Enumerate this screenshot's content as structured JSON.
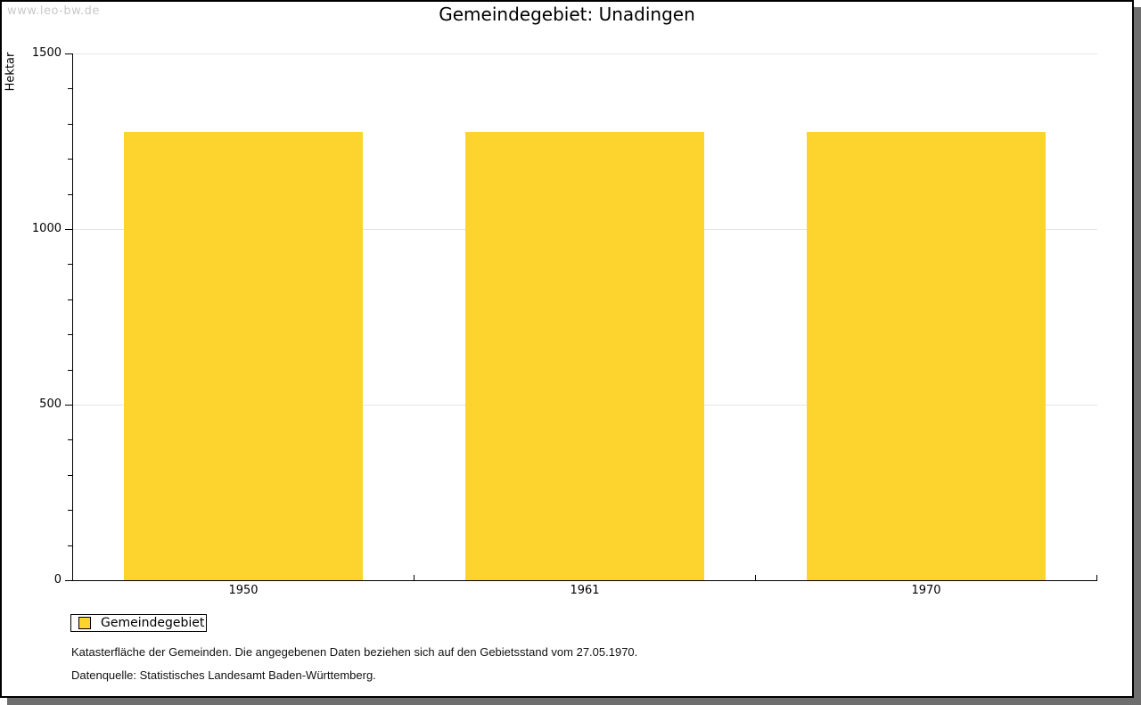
{
  "page": {
    "watermark": "www.leo-bw.de"
  },
  "chart_data": {
    "type": "bar",
    "title": "Gemeindegebiet: Unadingen",
    "categories": [
      "1950",
      "1961",
      "1970"
    ],
    "series": [
      {
        "name": "Gemeindegebiet",
        "values": [
          1277,
          1277,
          1277
        ]
      }
    ],
    "xlabel": "",
    "ylabel": "Hektar",
    "ylim": [
      0,
      1500
    ],
    "ytick_labels": [
      "0",
      "500",
      "1000",
      "1500"
    ],
    "ytick_major_step": 500,
    "ytick_minor_step": 100,
    "grid": "horizontal-major-only",
    "legend_position": "bottom-left",
    "bar_color": "#FDD32D"
  },
  "legend": {
    "items": [
      {
        "label": "Gemeindegebiet",
        "swatch_color": "#FDD32D"
      }
    ]
  },
  "footnotes": {
    "line1": "Katasterfläche der Gemeinden. Die angegebenen Daten beziehen sich auf den Gebietsstand vom 27.05.1970.",
    "line2": "Datenquelle: Statistisches Landesamt Baden-Württemberg."
  },
  "colors": {
    "bar": "#FDD32D",
    "grid": "#e4e4e4",
    "axis": "#000000",
    "watermark": "#c9c9c9",
    "frame_border": "#000000",
    "frame_shadow": "#6e6e6e"
  }
}
